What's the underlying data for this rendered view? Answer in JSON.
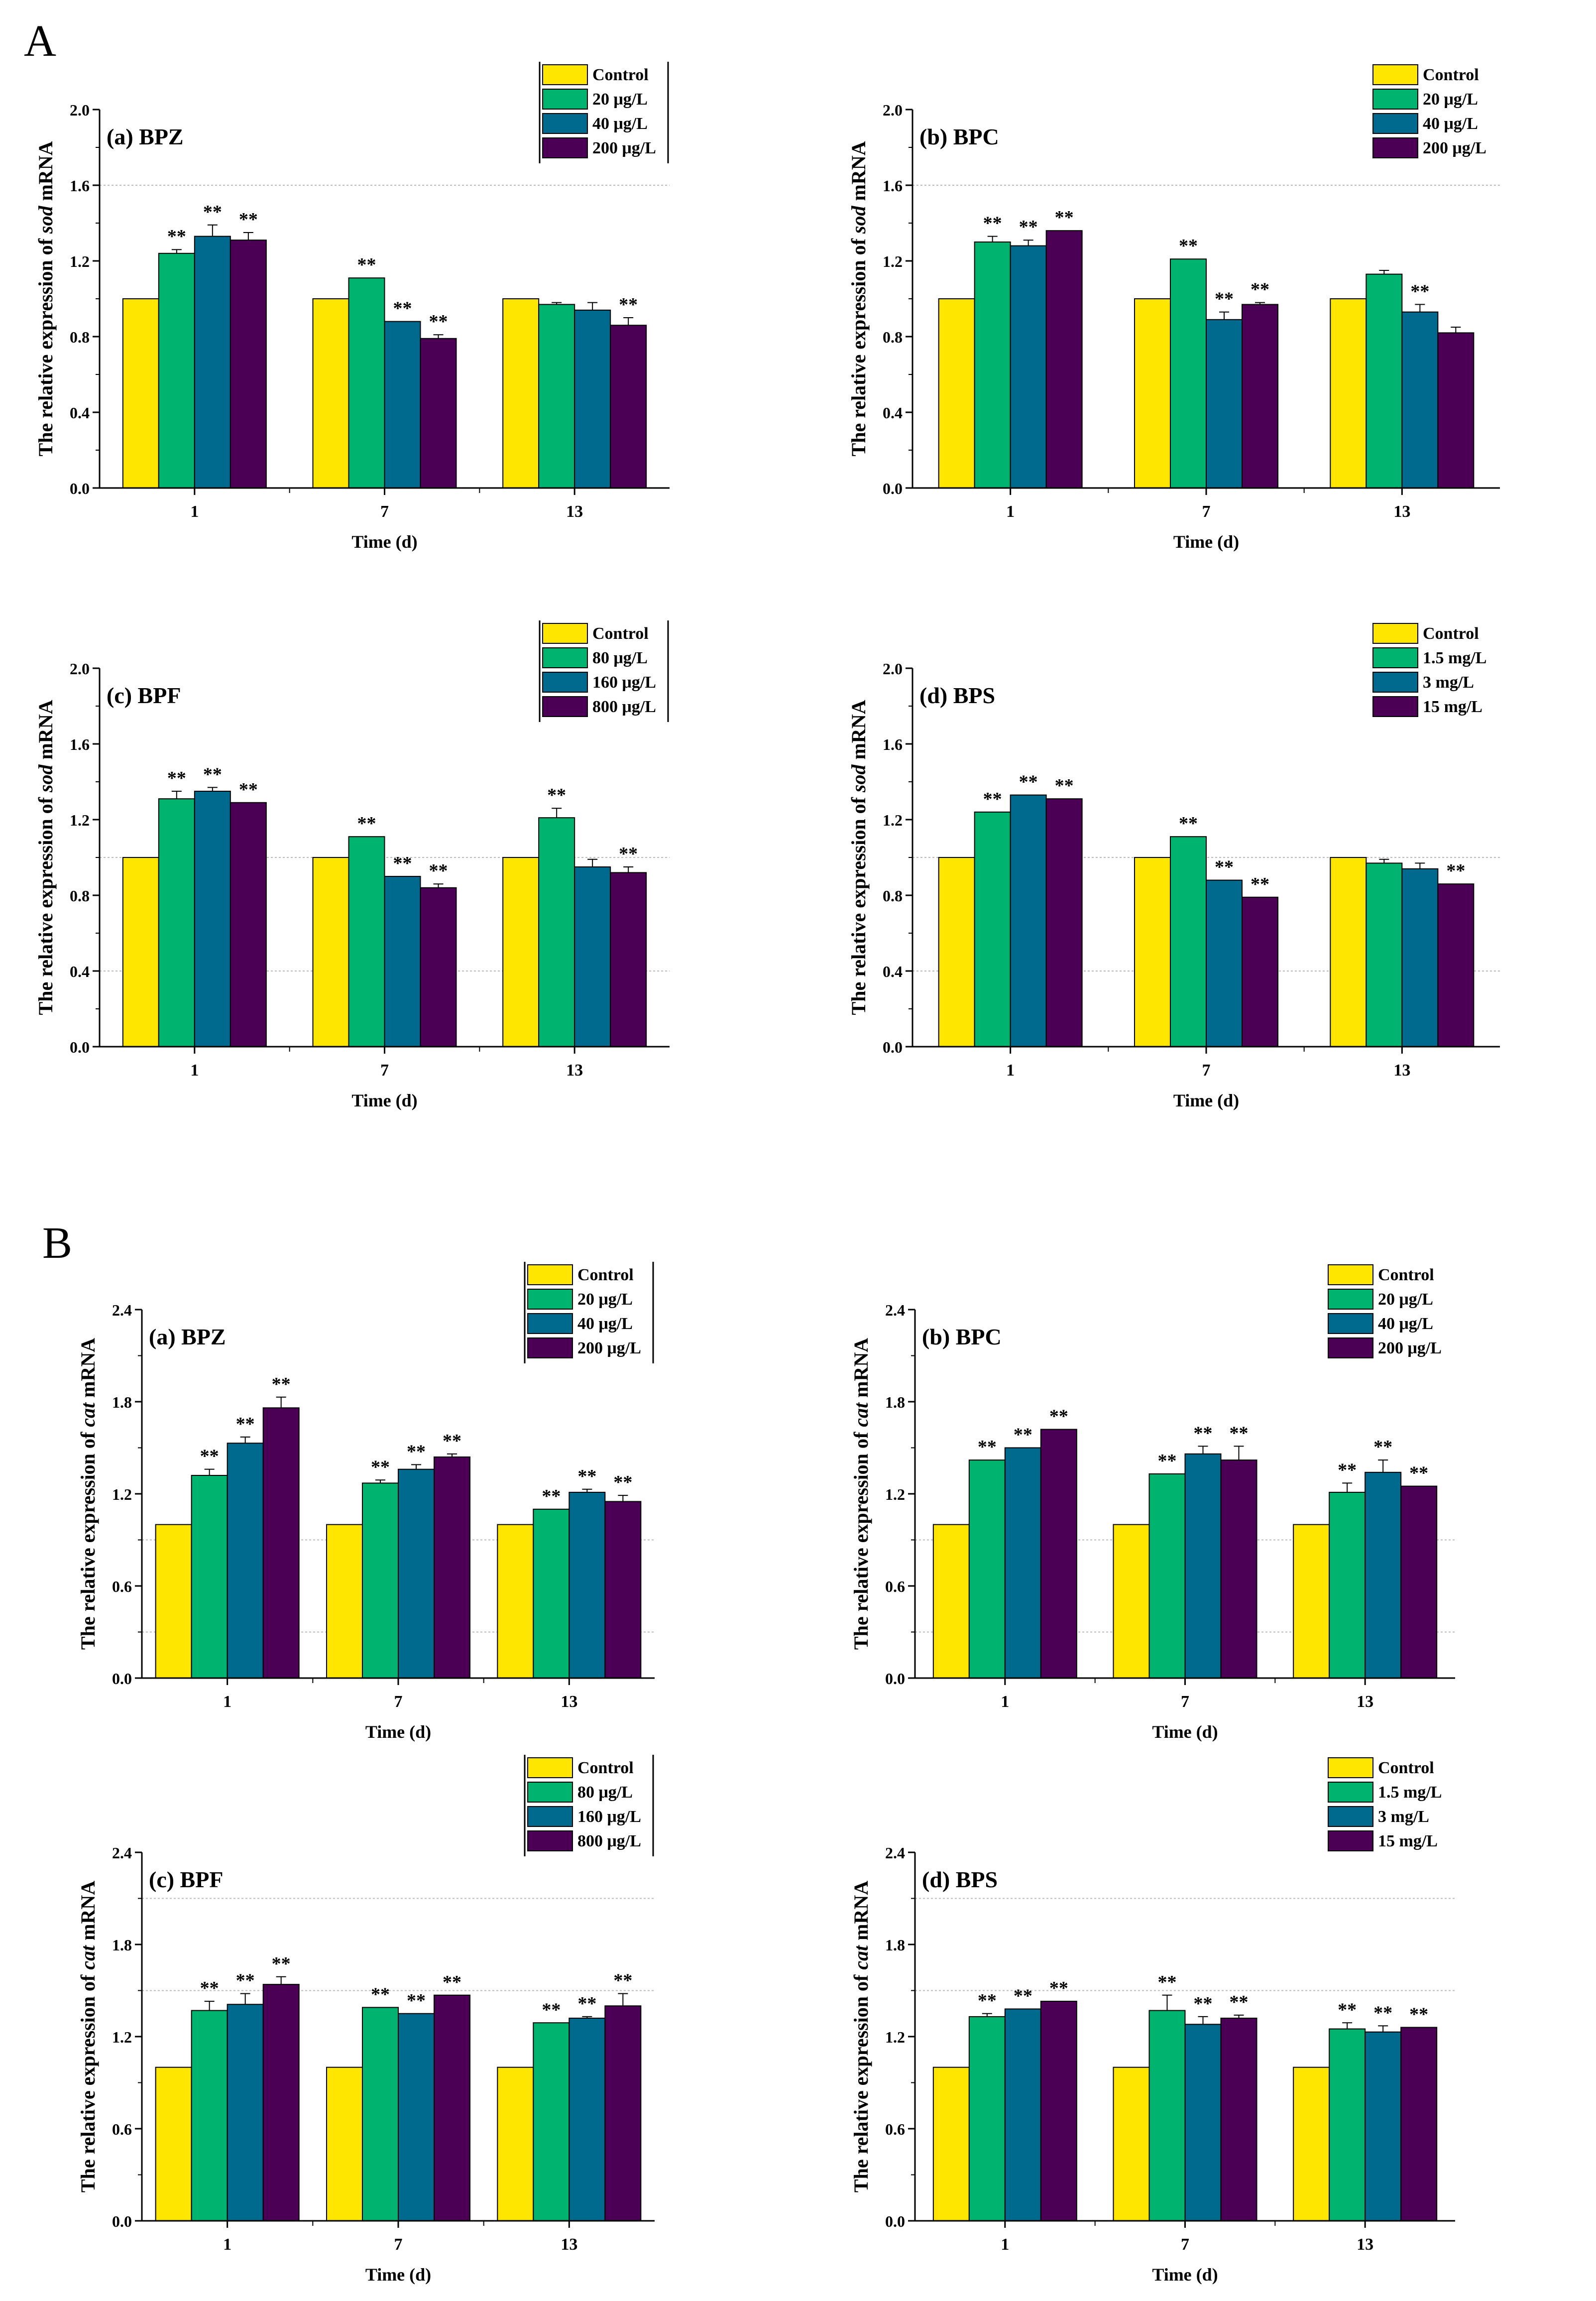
{
  "colors": {
    "series": [
      "#FFE600",
      "#00B36E",
      "#006A8E",
      "#4B0055"
    ],
    "gridline": "#bbbbbb",
    "axis": "#000000"
  },
  "sections": [
    {
      "label": "A"
    },
    {
      "label": "B"
    }
  ],
  "chart_data": [
    {
      "type": "bar",
      "section": "A",
      "panel": "(a) BPZ",
      "ylabel_prefix": "The relative expression of ",
      "ylabel_gene": "sod",
      "ylabel_suffix": " mRNA",
      "xlabel": "Time (d)",
      "categories": [
        "1",
        "7",
        "13"
      ],
      "ylim": [
        0,
        2.0
      ],
      "yticks": [
        "0.0",
        "0.4",
        "0.8",
        "1.2",
        "1.6",
        "2.0"
      ],
      "gridlines": [
        1.6
      ],
      "legend_position": "top-right",
      "legend_boxed": true,
      "series": [
        {
          "name": "Control",
          "values": [
            1.0,
            1.0,
            1.0
          ],
          "errors": [
            0,
            0,
            0
          ],
          "sig": [
            "",
            "",
            ""
          ]
        },
        {
          "name": "20 μg/L",
          "values": [
            1.24,
            1.11,
            0.97
          ],
          "errors": [
            0.02,
            0,
            0.01
          ],
          "sig": [
            "**",
            "**",
            ""
          ]
        },
        {
          "name": "40 μg/L",
          "values": [
            1.33,
            0.88,
            0.94
          ],
          "errors": [
            0.06,
            0,
            0.04
          ],
          "sig": [
            "**",
            "**",
            ""
          ]
        },
        {
          "name": "200 μg/L",
          "values": [
            1.31,
            0.79,
            0.86
          ],
          "errors": [
            0.04,
            0.02,
            0.04
          ],
          "sig": [
            "**",
            "**",
            "**"
          ]
        }
      ]
    },
    {
      "type": "bar",
      "section": "A",
      "panel": "(b) BPC",
      "ylabel_prefix": "The relative expression of ",
      "ylabel_gene": "sod",
      "ylabel_suffix": " mRNA",
      "xlabel": "Time (d)",
      "categories": [
        "1",
        "7",
        "13"
      ],
      "ylim": [
        0,
        2.0
      ],
      "yticks": [
        "0.0",
        "0.4",
        "0.8",
        "1.2",
        "1.6",
        "2.0"
      ],
      "gridlines": [
        1.6
      ],
      "legend_position": "top-right",
      "legend_boxed": false,
      "series": [
        {
          "name": "Control",
          "values": [
            1.0,
            1.0,
            1.0
          ],
          "errors": [
            0,
            0,
            0
          ],
          "sig": [
            "",
            "",
            ""
          ]
        },
        {
          "name": "20 μg/L",
          "values": [
            1.3,
            1.21,
            1.13
          ],
          "errors": [
            0.03,
            0,
            0.02
          ],
          "sig": [
            "**",
            "**",
            ""
          ]
        },
        {
          "name": "40 μg/L",
          "values": [
            1.28,
            0.89,
            0.93
          ],
          "errors": [
            0.03,
            0.04,
            0.04
          ],
          "sig": [
            "**",
            "**",
            "**"
          ]
        },
        {
          "name": "200 μg/L",
          "values": [
            1.36,
            0.97,
            0.82
          ],
          "errors": [
            0,
            0.01,
            0.03
          ],
          "sig": [
            "**",
            "**",
            ""
          ]
        }
      ]
    },
    {
      "type": "bar",
      "section": "A",
      "panel": "(c) BPF",
      "ylabel_prefix": "The relative expression of ",
      "ylabel_gene": "sod",
      "ylabel_suffix": " mRNA",
      "xlabel": "Time (d)",
      "categories": [
        "1",
        "7",
        "13"
      ],
      "ylim": [
        0,
        2.0
      ],
      "yticks": [
        "0.0",
        "0.4",
        "0.8",
        "1.2",
        "1.6",
        "2.0"
      ],
      "gridlines": [
        0.4,
        1.0
      ],
      "legend_position": "top-right",
      "legend_boxed": true,
      "series": [
        {
          "name": "Control",
          "values": [
            1.0,
            1.0,
            1.0
          ],
          "errors": [
            0,
            0,
            0
          ],
          "sig": [
            "",
            "",
            ""
          ]
        },
        {
          "name": "80 μg/L",
          "values": [
            1.31,
            1.11,
            1.21
          ],
          "errors": [
            0.04,
            0,
            0.05
          ],
          "sig": [
            "**",
            "**",
            "**"
          ]
        },
        {
          "name": "160 μg/L",
          "values": [
            1.35,
            0.9,
            0.95
          ],
          "errors": [
            0.02,
            0,
            0.04
          ],
          "sig": [
            "**",
            "**",
            ""
          ]
        },
        {
          "name": "800 μg/L",
          "values": [
            1.29,
            0.84,
            0.92
          ],
          "errors": [
            0,
            0.02,
            0.03
          ],
          "sig": [
            "**",
            "**",
            "**"
          ]
        }
      ]
    },
    {
      "type": "bar",
      "section": "A",
      "panel": "(d) BPS",
      "ylabel_prefix": "The relative expression of ",
      "ylabel_gene": "sod",
      "ylabel_suffix": " mRNA",
      "xlabel": "Time (d)",
      "categories": [
        "1",
        "7",
        "13"
      ],
      "ylim": [
        0,
        2.0
      ],
      "yticks": [
        "0.0",
        "0.4",
        "0.8",
        "1.2",
        "1.6",
        "2.0"
      ],
      "gridlines": [
        0.4,
        1.0
      ],
      "legend_position": "top-right",
      "legend_boxed": false,
      "series": [
        {
          "name": "Control",
          "values": [
            1.0,
            1.0,
            1.0
          ],
          "errors": [
            0,
            0,
            0
          ],
          "sig": [
            "",
            "",
            ""
          ]
        },
        {
          "name": "1.5 mg/L",
          "values": [
            1.24,
            1.11,
            0.97
          ],
          "errors": [
            0,
            0,
            0.02
          ],
          "sig": [
            "**",
            "**",
            ""
          ]
        },
        {
          "name": "3 mg/L",
          "values": [
            1.33,
            0.88,
            0.94
          ],
          "errors": [
            0,
            0,
            0.03
          ],
          "sig": [
            "**",
            "**",
            ""
          ]
        },
        {
          "name": "15 mg/L",
          "values": [
            1.31,
            0.79,
            0.86
          ],
          "errors": [
            0,
            0,
            0
          ],
          "sig": [
            "**",
            "**",
            "**"
          ]
        }
      ]
    },
    {
      "type": "bar",
      "section": "B",
      "panel": "(a) BPZ",
      "ylabel_prefix": "The relative expression of ",
      "ylabel_gene": "cat",
      "ylabel_suffix": " mRNA",
      "xlabel": "Time (d)",
      "categories": [
        "1",
        "7",
        "13"
      ],
      "ylim": [
        0,
        2.4
      ],
      "yticks": [
        "0.0",
        "0.6",
        "1.2",
        "1.8",
        "2.4"
      ],
      "gridlines": [
        0.3,
        0.9
      ],
      "legend_position": "top-right",
      "legend_boxed": true,
      "series": [
        {
          "name": "Control",
          "values": [
            1.0,
            1.0,
            1.0
          ],
          "errors": [
            0,
            0,
            0
          ],
          "sig": [
            "",
            "",
            ""
          ]
        },
        {
          "name": "20 μg/L",
          "values": [
            1.32,
            1.27,
            1.1
          ],
          "errors": [
            0.04,
            0.02,
            0
          ],
          "sig": [
            "**",
            "**",
            "**"
          ]
        },
        {
          "name": "40 μg/L",
          "values": [
            1.53,
            1.36,
            1.21
          ],
          "errors": [
            0.04,
            0.03,
            0.02
          ],
          "sig": [
            "**",
            "**",
            "**"
          ]
        },
        {
          "name": "200 μg/L",
          "values": [
            1.76,
            1.44,
            1.15
          ],
          "errors": [
            0.07,
            0.02,
            0.04
          ],
          "sig": [
            "**",
            "**",
            "**"
          ]
        }
      ]
    },
    {
      "type": "bar",
      "section": "B",
      "panel": "(b) BPC",
      "ylabel_prefix": "The relative expression of ",
      "ylabel_gene": "cat",
      "ylabel_suffix": " mRNA",
      "xlabel": "Time (d)",
      "categories": [
        "1",
        "7",
        "13"
      ],
      "ylim": [
        0,
        2.4
      ],
      "yticks": [
        "0.0",
        "0.6",
        "1.2",
        "1.8",
        "2.4"
      ],
      "gridlines": [
        0.3,
        0.9
      ],
      "legend_position": "top-right",
      "legend_boxed": false,
      "series": [
        {
          "name": "Control",
          "values": [
            1.0,
            1.0,
            1.0
          ],
          "errors": [
            0,
            0,
            0
          ],
          "sig": [
            "",
            "",
            ""
          ]
        },
        {
          "name": "20 μg/L",
          "values": [
            1.42,
            1.33,
            1.21
          ],
          "errors": [
            0,
            0,
            0.06
          ],
          "sig": [
            "**",
            "**",
            "**"
          ]
        },
        {
          "name": "40 μg/L",
          "values": [
            1.5,
            1.46,
            1.34
          ],
          "errors": [
            0,
            0.05,
            0.08
          ],
          "sig": [
            "**",
            "**",
            "**"
          ]
        },
        {
          "name": "200 μg/L",
          "values": [
            1.62,
            1.42,
            1.25
          ],
          "errors": [
            0,
            0.09,
            0
          ],
          "sig": [
            "**",
            "**",
            "**"
          ]
        }
      ]
    },
    {
      "type": "bar",
      "section": "B",
      "panel": "(c) BPF",
      "ylabel_prefix": "The relative expression of ",
      "ylabel_gene": "cat",
      "ylabel_suffix": " mRNA",
      "xlabel": "Time (d)",
      "categories": [
        "1",
        "7",
        "13"
      ],
      "ylim": [
        0,
        2.4
      ],
      "yticks": [
        "0.0",
        "0.6",
        "1.2",
        "1.8",
        "2.4"
      ],
      "gridlines": [
        1.5,
        2.1
      ],
      "legend_position": "top-right",
      "legend_boxed": true,
      "series": [
        {
          "name": "Control",
          "values": [
            1.0,
            1.0,
            1.0
          ],
          "errors": [
            0,
            0,
            0
          ],
          "sig": [
            "",
            "",
            ""
          ]
        },
        {
          "name": "80 μg/L",
          "values": [
            1.37,
            1.39,
            1.29
          ],
          "errors": [
            0.06,
            0,
            0
          ],
          "sig": [
            "**",
            "**",
            "**"
          ]
        },
        {
          "name": "160 μg/L",
          "values": [
            1.41,
            1.35,
            1.32
          ],
          "errors": [
            0.07,
            0,
            0.01
          ],
          "sig": [
            "**",
            "**",
            "**"
          ]
        },
        {
          "name": "800 μg/L",
          "values": [
            1.54,
            1.47,
            1.4
          ],
          "errors": [
            0.05,
            0,
            0.08
          ],
          "sig": [
            "**",
            "**",
            "**"
          ]
        }
      ]
    },
    {
      "type": "bar",
      "section": "B",
      "panel": "(d) BPS",
      "ylabel_prefix": "The relative expression of ",
      "ylabel_gene": "cat",
      "ylabel_suffix": " mRNA",
      "xlabel": "Time (d)",
      "categories": [
        "1",
        "7",
        "13"
      ],
      "ylim": [
        0,
        2.4
      ],
      "yticks": [
        "0.0",
        "0.6",
        "1.2",
        "1.8",
        "2.4"
      ],
      "gridlines": [
        1.5,
        2.1
      ],
      "legend_position": "top-right",
      "legend_boxed": false,
      "series": [
        {
          "name": "Control",
          "values": [
            1.0,
            1.0,
            1.0
          ],
          "errors": [
            0,
            0,
            0
          ],
          "sig": [
            "",
            "",
            ""
          ]
        },
        {
          "name": "1.5 mg/L",
          "values": [
            1.33,
            1.37,
            1.25
          ],
          "errors": [
            0.02,
            0.1,
            0.04
          ],
          "sig": [
            "**",
            "**",
            "**"
          ]
        },
        {
          "name": "3 mg/L",
          "values": [
            1.38,
            1.28,
            1.23
          ],
          "errors": [
            0,
            0.05,
            0.04
          ],
          "sig": [
            "**",
            "**",
            "**"
          ]
        },
        {
          "name": "15 mg/L",
          "values": [
            1.43,
            1.32,
            1.26
          ],
          "errors": [
            0,
            0.02,
            0
          ],
          "sig": [
            "**",
            "**",
            "**"
          ]
        }
      ]
    }
  ]
}
